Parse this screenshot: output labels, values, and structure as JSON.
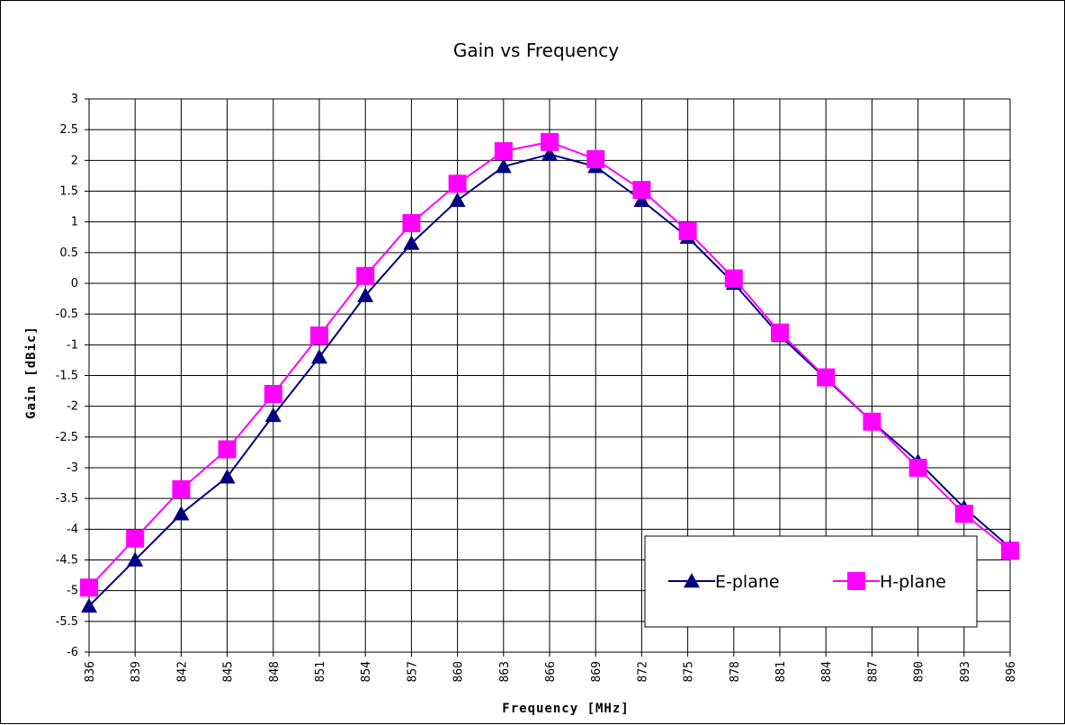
{
  "chart_data": {
    "type": "line",
    "title": "Gain vs Frequency",
    "xlabel": "Frequency [MHz]",
    "ylabel": "Gain [dBic]",
    "categories": [
      "836",
      "839",
      "842",
      "845",
      "848",
      "851",
      "854",
      "857",
      "860",
      "863",
      "866",
      "869",
      "872",
      "875",
      "878",
      "881",
      "884",
      "887",
      "890",
      "893",
      "896"
    ],
    "ylim": [
      -6,
      3
    ],
    "yticks": [
      "3",
      "2.5",
      "2",
      "1.5",
      "1",
      "0.5",
      "0",
      "-0.5",
      "-1",
      "-1.5",
      "-2",
      "-2.5",
      "-3",
      "-3.5",
      "-4",
      "-4.5",
      "-5",
      "-5.5",
      "-6"
    ],
    "grid": true,
    "legend_position": "bottom-right",
    "series": [
      {
        "name": "E-plane",
        "color": "#000080",
        "marker": "triangle",
        "values": [
          -5.25,
          -4.5,
          -3.75,
          -3.15,
          -2.15,
          -1.2,
          -0.2,
          0.65,
          1.35,
          1.9,
          2.1,
          1.9,
          1.35,
          0.75,
          0.0,
          -0.85,
          -1.55,
          -2.25,
          -2.9,
          -3.65,
          -4.3
        ]
      },
      {
        "name": "H-plane",
        "color": "#ff00ff",
        "marker": "square",
        "values": [
          -4.95,
          -4.15,
          -3.35,
          -2.7,
          -1.8,
          -0.85,
          0.12,
          0.98,
          1.62,
          2.15,
          2.3,
          2.02,
          1.52,
          0.85,
          0.08,
          -0.8,
          -1.53,
          -2.25,
          -3.0,
          -3.75,
          -4.35
        ]
      }
    ]
  }
}
